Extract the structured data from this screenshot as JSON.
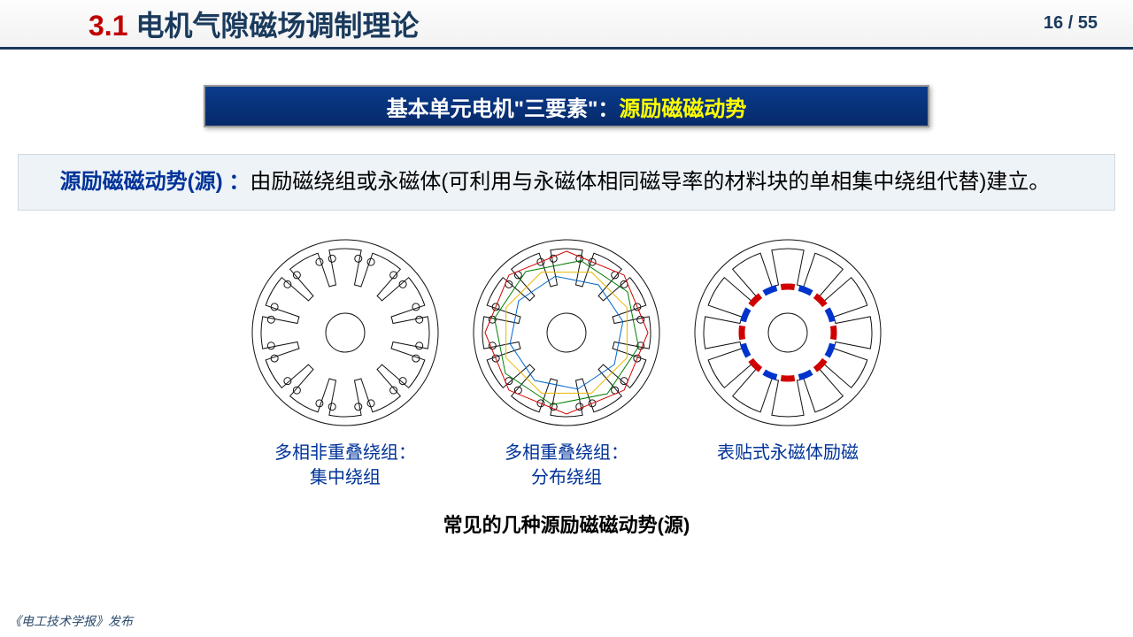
{
  "header": {
    "section_num": "3.1",
    "section_title": " 电机气隙磁场调制理论",
    "page": "16 / 55"
  },
  "banner": {
    "white": "基本单元电机\"三要素\"：",
    "yellow": "源励磁磁动势"
  },
  "desc": {
    "highlight": "源励磁磁动势(源) ：",
    "body": "由励磁绕组或永磁体(可利用与永磁体相同磁导率的材料块的单相集中绕组代替)建立。"
  },
  "diagrams": {
    "slot_count": 12,
    "size": 220,
    "stroke": "#111111",
    "stroke_w": 1,
    "outer_r": 105,
    "tooth_outer_r": 95,
    "tooth_inner_r": 55,
    "bore_r": 22,
    "slot_opening_deg": 8,
    "coil_dot_r": 4,
    "fig1": {
      "caption": "多相非重叠绕组：\n集中绕组"
    },
    "fig2": {
      "caption": "多相重叠绕组：\n分布绕组",
      "winding_colors": [
        "#d00000",
        "#008000",
        "#e6b800",
        "#0066cc"
      ],
      "winding_r": [
        92,
        83,
        74,
        65
      ],
      "winding_sides": 8
    },
    "fig3": {
      "caption": "表贴式永磁体励磁",
      "pm_r": 52,
      "pm_arc_deg": 20,
      "pm_gap_deg": 3,
      "pm_count": 16,
      "pm_colors": [
        "#d00000",
        "#0033cc"
      ],
      "pm_thick": 7
    }
  },
  "bottom_caption": "常见的几种源励磁磁动势(源)",
  "footer": "《电工技术学报》发布"
}
